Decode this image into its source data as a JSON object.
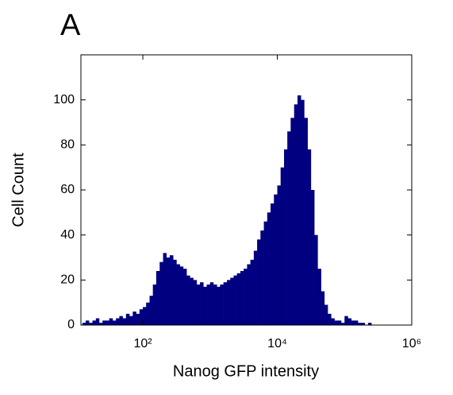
{
  "chart_data": {
    "type": "histogram",
    "title": "A",
    "xlabel": "Nanog GFP intensity",
    "ylabel": "Cell Count",
    "xscale": "log",
    "color": "#000080",
    "xlim": [
      12,
      1000000
    ],
    "ylim": [
      0,
      120
    ],
    "xticks": [
      {
        "value": 100,
        "label": "10²"
      },
      {
        "value": 10000,
        "label": "10⁴"
      },
      {
        "value": 1000000,
        "label": "10⁶"
      }
    ],
    "yticks": [
      0,
      20,
      40,
      60,
      80,
      100
    ],
    "bins": [
      12.6,
      14.1,
      15.8,
      17.8,
      20,
      22.4,
      25.1,
      28.2,
      31.6,
      35.5,
      39.8,
      44.7,
      50.1,
      56.2,
      63.1,
      70.8,
      79.4,
      89.1,
      100,
      112,
      126,
      141,
      158,
      178,
      200,
      224,
      251,
      282,
      316,
      355,
      398,
      447,
      501,
      562,
      631,
      708,
      794,
      891,
      1000,
      1120,
      1260,
      1410,
      1580,
      1780,
      2000,
      2240,
      2510,
      2820,
      3160,
      3550,
      3980,
      4470,
      5010,
      5620,
      6310,
      7080,
      7940,
      8910,
      10000,
      11200,
      12600,
      14100,
      15800,
      17800,
      20000,
      22400,
      25100,
      28200,
      31600,
      35500,
      39800,
      44700,
      50100,
      56200,
      63100,
      70800,
      79400,
      89100,
      100000,
      112000,
      126000,
      141000,
      158000,
      178000,
      200000,
      224000,
      251000
    ],
    "values": [
      1,
      2,
      1,
      2,
      3,
      1,
      2,
      2,
      3,
      2,
      3,
      4,
      3,
      5,
      4,
      6,
      5,
      7,
      8,
      10,
      13,
      18,
      24,
      28,
      32,
      30,
      31,
      29,
      27,
      26,
      25,
      22,
      21,
      20,
      18,
      19,
      17,
      18,
      19,
      18,
      17,
      18,
      19,
      20,
      21,
      22,
      23,
      24,
      25,
      27,
      29,
      33,
      38,
      42,
      46,
      50,
      54,
      58,
      62,
      70,
      78,
      86,
      92,
      98,
      102,
      100,
      92,
      78,
      60,
      40,
      25,
      15,
      9,
      5,
      3,
      2,
      2,
      1,
      4,
      3,
      2,
      2,
      1,
      1,
      0,
      1
    ]
  }
}
